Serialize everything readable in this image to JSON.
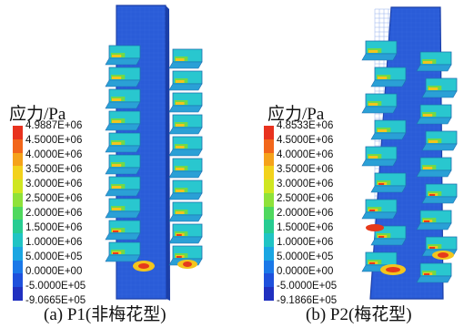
{
  "panels": [
    {
      "id": "a",
      "legend_title": "应力/Pa",
      "ticks": [
        "4.9887E+06",
        "4.5000E+06",
        "4.0000E+06",
        "3.5000E+06",
        "3.0000E+06",
        "2.5000E+06",
        "2.0000E+06",
        "1.5000E+06",
        "1.0000E+06",
        "5.0000E+05",
        "0.0000E+00",
        "-5.0000E+05",
        "-9.0665E+05"
      ],
      "caption": "(a)  P1(非梅花型)"
    },
    {
      "id": "b",
      "legend_title": "应力/Pa",
      "ticks": [
        "4.8533E+06",
        "4.5000E+06",
        "4.0000E+06",
        "3.5000E+06",
        "3.0000E+06",
        "2.5000E+06",
        "2.0000E+06",
        "1.5000E+06",
        "1.0000E+06",
        "5.0000E+05",
        "0.0000E+00",
        "-5.0000E+05",
        "-9.1866E+05"
      ],
      "caption": "(b)  P2(梅花型)"
    }
  ],
  "colors": {
    "colorbar": [
      "#e8321e",
      "#f2661a",
      "#f5a21a",
      "#f2d21c",
      "#cfe621",
      "#8fe23a",
      "#4fd85e",
      "#27cc92",
      "#20c4c4",
      "#1aa6e2",
      "#1a78e8",
      "#1e50dc",
      "#2030c0"
    ],
    "plate": "#2a5cd8",
    "plate_edge": "#1b3fa8",
    "fin_face": "#29c7cf",
    "fin_side": "#2aa0d6",
    "hot": "#e63a1c",
    "warm": "#f3c51d",
    "mid": "#6fd94a"
  }
}
